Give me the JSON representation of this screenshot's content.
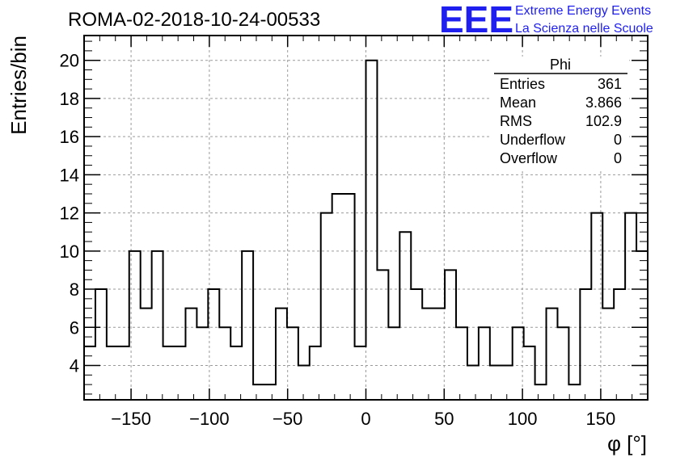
{
  "chart_data": {
    "type": "bar",
    "style": "step-histogram",
    "title": "ROMA-02-2018-10-24-00533",
    "xlabel": "φ [°]",
    "ylabel": "Entries/bin",
    "xlim": [
      -180,
      180
    ],
    "ylim": [
      2.2,
      21.3
    ],
    "grid": true,
    "bin_width": 7.2,
    "x_ticks": [
      -150,
      -100,
      -50,
      0,
      50,
      100,
      150
    ],
    "x_tick_labels": [
      "−150",
      "−100",
      "−50",
      "0",
      "50",
      "100",
      "150"
    ],
    "y_ticks": [
      4,
      6,
      8,
      10,
      12,
      14,
      16,
      18,
      20
    ],
    "y_tick_labels": [
      "4",
      "6",
      "8",
      "10",
      "12",
      "14",
      "16",
      "18",
      "20"
    ],
    "series": [
      {
        "name": "Phi",
        "values": [
          5,
          8,
          5,
          5,
          10,
          7,
          10,
          5,
          5,
          7,
          6,
          8,
          6,
          5,
          10,
          3,
          3,
          7,
          6,
          4,
          5,
          12,
          13,
          13,
          5,
          20,
          9,
          6,
          11,
          8,
          7,
          7,
          9,
          6,
          4,
          6,
          4,
          4,
          6,
          5,
          3,
          7,
          6,
          3,
          8,
          12,
          7,
          8,
          12,
          10
        ]
      }
    ],
    "stats_box": {
      "title": "Phi",
      "position": "top-right",
      "rows": [
        {
          "label": "Entries",
          "value": "361"
        },
        {
          "label": "Mean",
          "value": "3.866"
        },
        {
          "label": "RMS",
          "value": "102.9"
        },
        {
          "label": "Underflow",
          "value": "0"
        },
        {
          "label": "Overflow",
          "value": "0"
        }
      ]
    }
  },
  "logo": {
    "mark": "EEE",
    "line1": "Extreme Energy Events",
    "line2": "La Scienza nelle Scuole",
    "color": "#1f1ff0"
  }
}
